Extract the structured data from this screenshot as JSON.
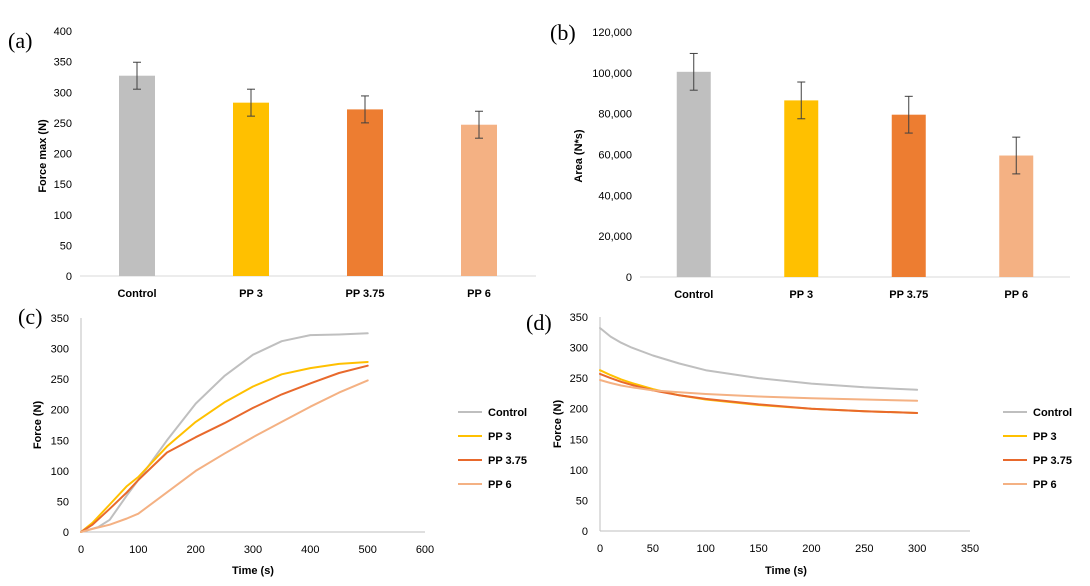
{
  "chart_data": [
    {
      "panel": "(a)",
      "type": "bar",
      "categories": [
        "Control",
        "PP 3",
        "PP 3.75",
        "PP 6"
      ],
      "values": [
        327,
        283,
        272,
        247
      ],
      "errors": [
        22,
        22,
        22,
        22
      ],
      "colors": [
        "#bfbfbf",
        "#ffc000",
        "#ed7d31",
        "#f4b183"
      ],
      "ylabel": "Force max (N)",
      "ylim": [
        0,
        400
      ],
      "yticks": [
        "0",
        "50",
        "100",
        "150",
        "200",
        "250",
        "300",
        "350",
        "400"
      ]
    },
    {
      "panel": "(b)",
      "type": "bar",
      "categories": [
        "Control",
        "PP 3",
        "PP 3.75",
        "PP 6"
      ],
      "values": [
        100500,
        86500,
        79500,
        59500
      ],
      "errors": [
        9000,
        9000,
        9000,
        9000
      ],
      "colors": [
        "#bfbfbf",
        "#ffc000",
        "#ed7d31",
        "#f4b183"
      ],
      "ylabel": "Area (N*s)",
      "ylim": [
        0,
        120000
      ],
      "yticks": [
        "0",
        "20,000",
        "40,000",
        "60,000",
        "80,000",
        "100,000",
        "120,000"
      ]
    },
    {
      "panel": "(c)",
      "type": "line",
      "xlabel": "Time (s)",
      "ylabel": "Force (N)",
      "xlim": [
        0,
        600
      ],
      "ylim": [
        0,
        350
      ],
      "xticks": [
        "0",
        "100",
        "200",
        "300",
        "400",
        "500",
        "600"
      ],
      "yticks": [
        "0",
        "50",
        "100",
        "150",
        "200",
        "250",
        "300",
        "350"
      ],
      "legend": [
        "Control",
        "PP 3",
        "PP 3.75",
        "PP 6"
      ],
      "series": [
        {
          "name": "Control",
          "color": "#bfbfbf",
          "x": [
            0,
            30,
            50,
            80,
            100,
            150,
            200,
            250,
            300,
            350,
            400,
            450,
            500
          ],
          "y": [
            0,
            8,
            20,
            60,
            85,
            150,
            210,
            255,
            290,
            312,
            322,
            323,
            325
          ]
        },
        {
          "name": "PP 3",
          "color": "#ffc000",
          "x": [
            0,
            20,
            50,
            80,
            100,
            150,
            200,
            250,
            300,
            350,
            400,
            450,
            500
          ],
          "y": [
            0,
            15,
            45,
            75,
            90,
            140,
            180,
            212,
            238,
            258,
            268,
            275,
            278
          ]
        },
        {
          "name": "PP 3.75",
          "color": "#e8692c",
          "x": [
            0,
            20,
            50,
            80,
            100,
            150,
            200,
            250,
            300,
            350,
            400,
            450,
            500
          ],
          "y": [
            0,
            12,
            38,
            65,
            85,
            130,
            155,
            178,
            203,
            225,
            243,
            260,
            272
          ]
        },
        {
          "name": "PP 6",
          "color": "#f4b183",
          "x": [
            0,
            20,
            50,
            80,
            100,
            150,
            200,
            250,
            300,
            350,
            400,
            450,
            500
          ],
          "y": [
            0,
            5,
            12,
            22,
            30,
            65,
            100,
            128,
            155,
            180,
            205,
            228,
            248
          ]
        }
      ]
    },
    {
      "panel": "(d)",
      "type": "line",
      "xlabel": "Time (s)",
      "ylabel": "Force (N)",
      "xlim": [
        0,
        350
      ],
      "ylim": [
        0,
        350
      ],
      "xticks": [
        "0",
        "50",
        "100",
        "150",
        "200",
        "250",
        "300",
        "350"
      ],
      "yticks": [
        "0",
        "50",
        "100",
        "150",
        "200",
        "250",
        "300",
        "350"
      ],
      "legend": [
        "Control",
        "PP 3",
        "PP 3.75",
        "PP 6"
      ],
      "series": [
        {
          "name": "Control",
          "color": "#bfbfbf",
          "x": [
            0,
            10,
            20,
            30,
            50,
            75,
            100,
            150,
            200,
            250,
            300
          ],
          "y": [
            332,
            318,
            308,
            300,
            287,
            274,
            263,
            250,
            241,
            235,
            231
          ]
        },
        {
          "name": "PP 3",
          "color": "#ffc000",
          "x": [
            0,
            10,
            20,
            30,
            50,
            75,
            100,
            150,
            200,
            250,
            300
          ],
          "y": [
            263,
            255,
            248,
            242,
            232,
            222,
            215,
            206,
            200,
            196,
            193
          ]
        },
        {
          "name": "PP 3.75",
          "color": "#e8692c",
          "x": [
            0,
            10,
            20,
            30,
            50,
            75,
            100,
            150,
            200,
            250,
            300
          ],
          "y": [
            257,
            250,
            244,
            239,
            230,
            222,
            216,
            207,
            200,
            196,
            193
          ]
        },
        {
          "name": "PP 6",
          "color": "#f4b183",
          "x": [
            0,
            10,
            20,
            30,
            50,
            75,
            100,
            150,
            200,
            250,
            300
          ],
          "y": [
            247,
            242,
            238,
            235,
            230,
            227,
            224,
            220,
            217,
            215,
            213
          ]
        }
      ]
    }
  ]
}
